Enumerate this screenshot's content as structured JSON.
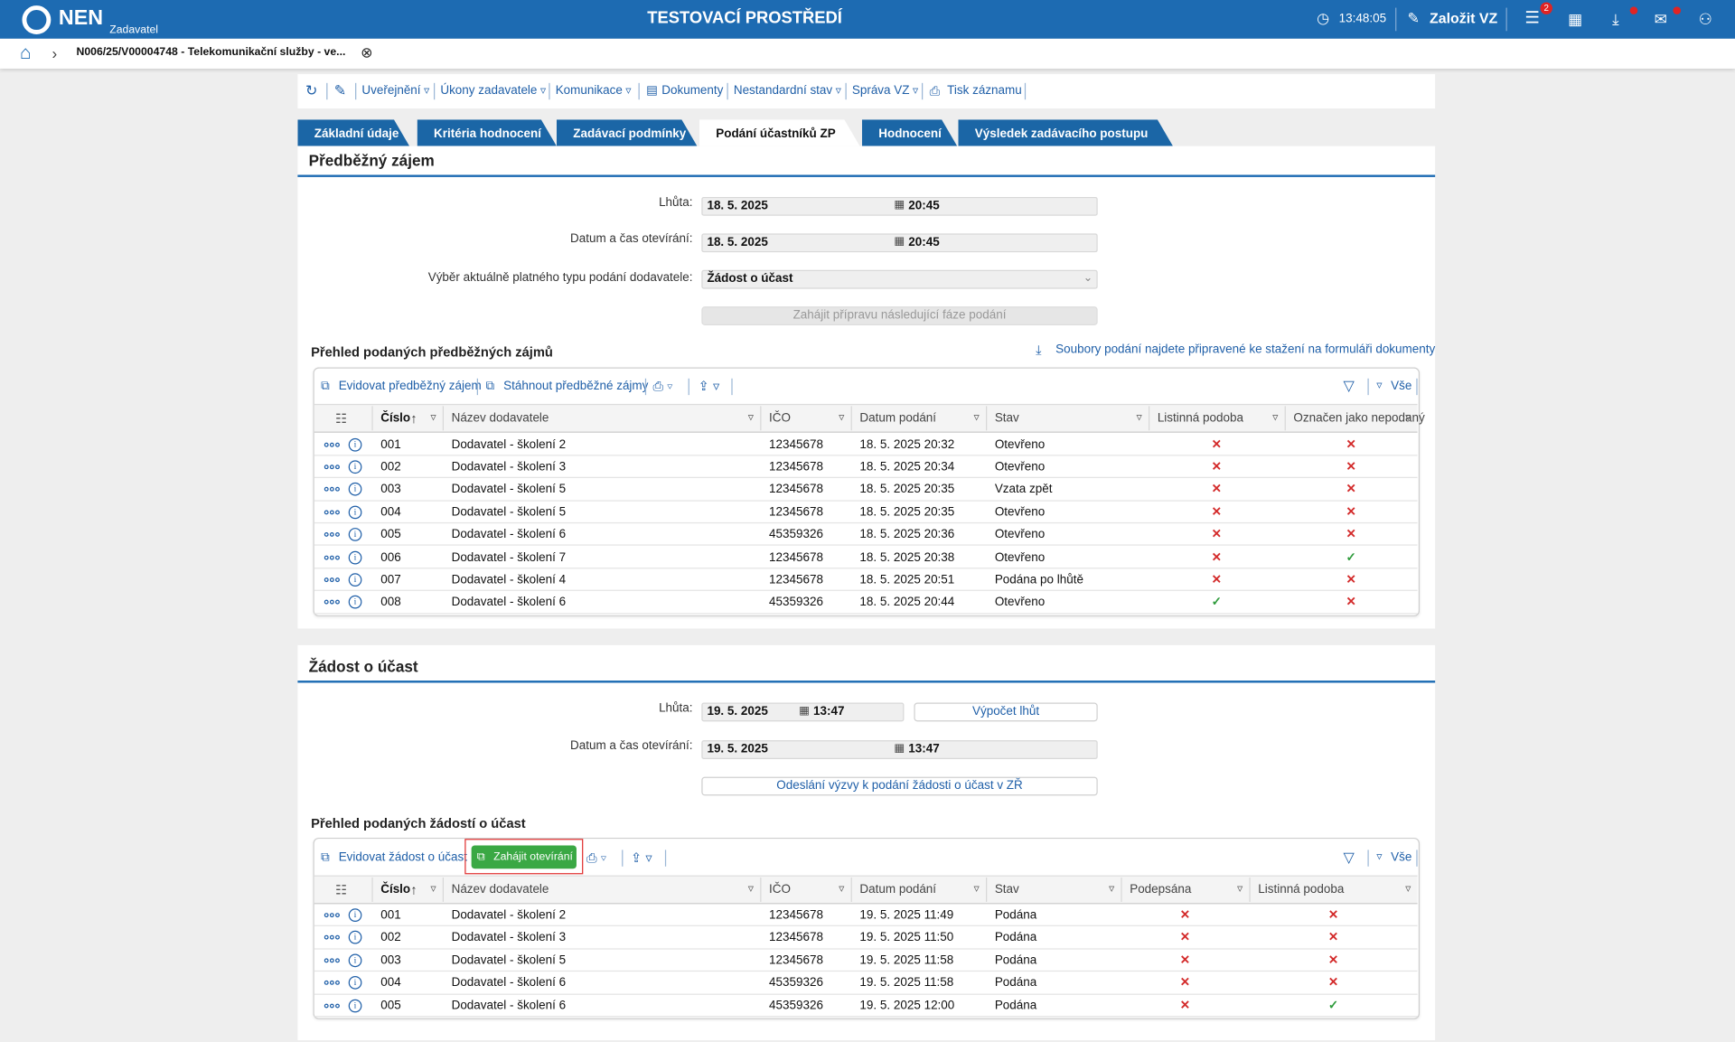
{
  "header": {
    "logo": "NEN",
    "role": "Zadavatel",
    "title": "TESTOVACÍ PROSTŘEDÍ",
    "time": "13:48:05",
    "create": "Založit VZ",
    "badge": 2
  },
  "breadcrumb": "N006/25/V00004748 - Telekomunikační služby - ve...",
  "toolbar": [
    "Uveřejnění",
    "Úkony zadavatele",
    "Komunikace",
    "Dokumenty",
    "Nestandardní stav",
    "Správa VZ",
    "Tisk záznamu"
  ],
  "tabs": [
    "Základní údaje",
    "Kritéria hodnocení",
    "Zadávací podmínky",
    "Podání účastníků ZP",
    "Hodnocení",
    "Výsledek zadávacího postupu"
  ],
  "active_tab": 3,
  "section1": {
    "title": "Předběžný zájem",
    "fields": [
      {
        "label": "Lhůta:",
        "date": "18. 5. 2025",
        "time": "20:45"
      },
      {
        "label": "Datum a čas otevírání:",
        "date": "18. 5. 2025",
        "time": "20:45"
      }
    ],
    "select_label": "Výběr aktuálně platného typu podání dodavatele:",
    "select_value": "Žádost o účast",
    "button": "Zahájit přípravu následující fáze podání",
    "grid_title": "Přehled podaných předběžných zájmů",
    "download_link": "Soubory podání najdete připravené ke stažení na formuláři dokumenty",
    "grid": {
      "actions": [
        "Evidovat předběžný zájem",
        "Stáhnout předběžné zájmy"
      ],
      "filter": "Vše",
      "columns": [
        "Číslo",
        "Název dodavatele",
        "IČO",
        "Datum podání",
        "Stav",
        "Listinná podoba",
        "Označen jako nepodaný"
      ],
      "rows": [
        [
          "001",
          "Dodavatel - školení 2",
          "12345678",
          "18. 5. 2025 20:32",
          "Otevřeno",
          "✕",
          "✕"
        ],
        [
          "002",
          "Dodavatel - školení 3",
          "12345678",
          "18. 5. 2025 20:34",
          "Otevřeno",
          "✕",
          "✕"
        ],
        [
          "003",
          "Dodavatel - školení 5",
          "12345678",
          "18. 5. 2025 20:35",
          "Vzata zpět",
          "✕",
          "✕"
        ],
        [
          "004",
          "Dodavatel - školení 5",
          "12345678",
          "18. 5. 2025 20:35",
          "Otevřeno",
          "✕",
          "✕"
        ],
        [
          "005",
          "Dodavatel - školení 6",
          "45359326",
          "18. 5. 2025 20:36",
          "Otevřeno",
          "✕",
          "✕"
        ],
        [
          "006",
          "Dodavatel - školení 7",
          "12345678",
          "18. 5. 2025 20:38",
          "Otevřeno",
          "✕",
          "✓"
        ],
        [
          "007",
          "Dodavatel - školení 4",
          "12345678",
          "18. 5. 2025 20:51",
          "Podána po lhůtě",
          "✕",
          "✕"
        ],
        [
          "008",
          "Dodavatel - školení 6",
          "45359326",
          "18. 5. 2025 20:44",
          "Otevřeno",
          "✓",
          "✕"
        ]
      ]
    }
  },
  "section2": {
    "title": "Žádost o účast",
    "fields": [
      {
        "label": "Lhůta:",
        "date": "19. 5. 2025",
        "time": "13:47"
      },
      {
        "label": "Datum a čas otevírání:",
        "date": "19. 5. 2025",
        "time": "13:47"
      }
    ],
    "calc_button": "Výpočet lhůt",
    "button": "Odeslání výzvy k podání žádosti o účast v ZŘ",
    "grid_title": "Přehled podaných žádostí o účast",
    "grid": {
      "actions": [
        "Evidovat žádost o účast"
      ],
      "highlight_action": "Zahájit otevírání",
      "filter": "Vše",
      "columns": [
        "Číslo",
        "Název dodavatele",
        "IČO",
        "Datum podání",
        "Stav",
        "Podepsána",
        "Listinná podoba"
      ],
      "rows": [
        [
          "001",
          "Dodavatel - školení 2",
          "12345678",
          "19. 5. 2025 11:49",
          "Podána",
          "✕",
          "✕"
        ],
        [
          "002",
          "Dodavatel - školení 3",
          "12345678",
          "19. 5. 2025 11:50",
          "Podána",
          "✕",
          "✕"
        ],
        [
          "003",
          "Dodavatel - školení 5",
          "12345678",
          "19. 5. 2025 11:58",
          "Podána",
          "✕",
          "✕"
        ],
        [
          "004",
          "Dodavatel - školení 6",
          "45359326",
          "19. 5. 2025 11:58",
          "Podána",
          "✕",
          "✕"
        ],
        [
          "005",
          "Dodavatel - školení 6",
          "45359326",
          "19. 5. 2025 12:00",
          "Podána",
          "✕",
          "✓"
        ]
      ]
    }
  }
}
